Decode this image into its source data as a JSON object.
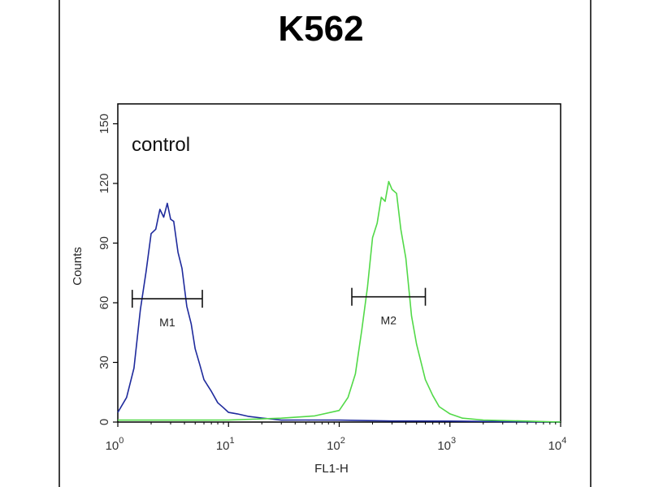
{
  "chart_data": {
    "type": "line",
    "title": "K562",
    "xlabel": "FL1-H",
    "ylabel": "Counts",
    "x_scale": "log",
    "xlim": [
      1,
      10000
    ],
    "ylim": [
      0,
      160
    ],
    "x_ticks": [
      {
        "value": 1,
        "base": "10",
        "exp": "0"
      },
      {
        "value": 10,
        "base": "10",
        "exp": "1"
      },
      {
        "value": 100,
        "base": "10",
        "exp": "2"
      },
      {
        "value": 1000,
        "base": "10",
        "exp": "3"
      },
      {
        "value": 10000,
        "base": "10",
        "exp": "4"
      }
    ],
    "y_ticks": [
      0,
      30,
      60,
      90,
      120,
      150
    ],
    "grid": false,
    "annotation": "control",
    "series": [
      {
        "color": "#1e2a9c",
        "x": [
          1,
          1.2,
          1.4,
          1.6,
          1.8,
          2.0,
          2.2,
          2.4,
          2.6,
          2.8,
          3.0,
          3.2,
          3.5,
          3.8,
          4.2,
          4.6,
          5.0,
          5.5,
          6.0,
          7.0,
          8.0,
          9.0,
          10,
          12,
          15,
          20,
          30,
          50,
          100,
          300,
          1000,
          10000
        ],
        "y": [
          5,
          12,
          28,
          55,
          78,
          92,
          100,
          104,
          106,
          107,
          105,
          98,
          88,
          75,
          60,
          48,
          38,
          28,
          22,
          15,
          10,
          7,
          5,
          4,
          3,
          2,
          1,
          1,
          1,
          0.5,
          0.5,
          0
        ]
      },
      {
        "color": "#52d948",
        "x": [
          1,
          10,
          30,
          60,
          100,
          120,
          140,
          160,
          180,
          200,
          220,
          240,
          260,
          280,
          300,
          330,
          360,
          400,
          450,
          500,
          600,
          700,
          800,
          1000,
          1300,
          2000,
          5000,
          10000
        ],
        "y": [
          1,
          1,
          2,
          3,
          6,
          12,
          25,
          45,
          70,
          90,
          103,
          110,
          114,
          118,
          120,
          112,
          100,
          80,
          55,
          38,
          22,
          13,
          8,
          4,
          2,
          1,
          0.5,
          0
        ]
      }
    ],
    "markers": [
      {
        "label": "M1",
        "x_start": 1.35,
        "x_end": 5.8,
        "y": 62
      },
      {
        "label": "M2",
        "x_start": 130,
        "x_end": 600,
        "y": 63
      }
    ]
  }
}
